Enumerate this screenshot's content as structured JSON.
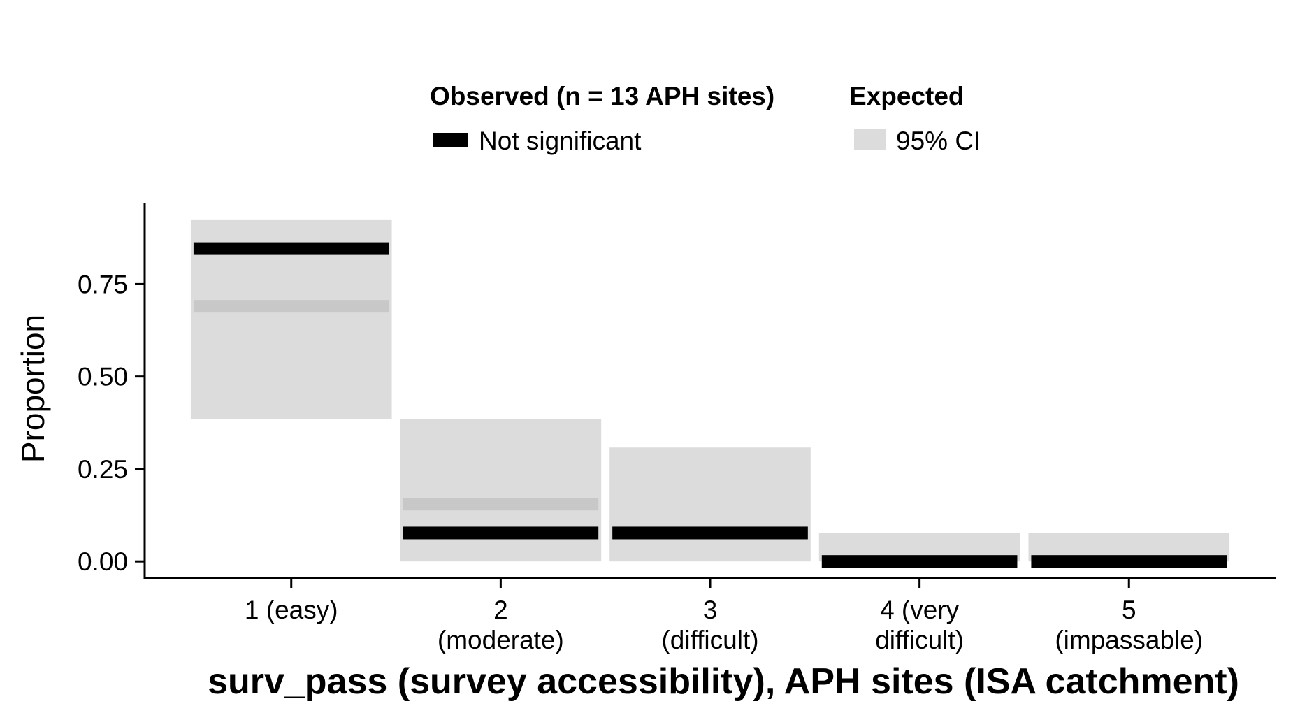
{
  "chart_data": {
    "type": "bar",
    "title": "",
    "xlabel": "surv_pass (survey accessibility), APH sites (ISA catchment)",
    "ylabel": "Proportion",
    "ylim": [
      -0.045,
      0.97
    ],
    "yticks": [
      {
        "value": 0.0,
        "label": "0.00"
      },
      {
        "value": 0.25,
        "label": "0.25"
      },
      {
        "value": 0.5,
        "label": "0.50"
      },
      {
        "value": 0.75,
        "label": "0.75"
      }
    ],
    "categories": [
      {
        "lines": [
          "1 (easy)"
        ]
      },
      {
        "lines": [
          "2",
          "(moderate)"
        ]
      },
      {
        "lines": [
          "3",
          "(difficult)"
        ]
      },
      {
        "lines": [
          "4 (very",
          "difficult)"
        ]
      },
      {
        "lines": [
          "5",
          "(impassable)"
        ]
      }
    ],
    "series": [
      {
        "name": "Not significant",
        "kind": "observed",
        "values": [
          0.846,
          0.077,
          0.077,
          0.0,
          0.0
        ]
      },
      {
        "kind": "expected",
        "values": [
          0.69,
          0.155,
          0.077,
          0.0,
          0.0
        ]
      },
      {
        "name": "95% CI",
        "kind": "ci",
        "lower": [
          0.385,
          0.0,
          0.0,
          0.0,
          0.0
        ],
        "upper": [
          0.923,
          0.385,
          0.308,
          0.077,
          0.077
        ]
      }
    ],
    "legend": {
      "placement": "top",
      "groups": [
        {
          "title": "Observed (n = 13 APH sites)",
          "label": "Not significant",
          "color": "#000000"
        },
        {
          "title": "Expected",
          "label": "95% CI",
          "color": "#dcdcdc"
        }
      ]
    },
    "grid": false,
    "colors": {
      "observed": "#000000",
      "expected": "#c8c8c8",
      "ci": "#dcdcdc",
      "axis": "#000000"
    }
  }
}
